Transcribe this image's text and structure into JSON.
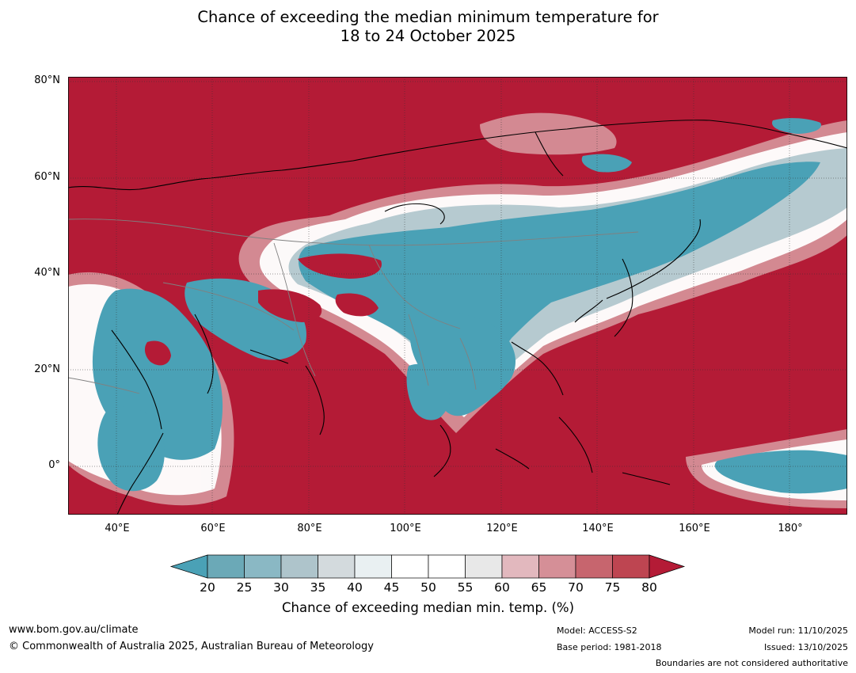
{
  "title": {
    "line1": "Chance of exceeding the median minimum temperature for",
    "line2": "18 to 24 October 2025"
  },
  "map": {
    "lat_ticks": [
      "80°N",
      "60°N",
      "40°N",
      "20°N",
      "0°"
    ],
    "lon_ticks": [
      "40°E",
      "60°E",
      "80°E",
      "100°E",
      "120°E",
      "140°E",
      "160°E",
      "180°"
    ],
    "lon_range": [
      30,
      192
    ],
    "lat_range": [
      -10,
      81
    ],
    "colors": {
      "high": "#b41b36",
      "low": "#4aa1b6",
      "neutral": "#ffffff",
      "coast": "#000000",
      "border": "#808080",
      "grid": "#333333"
    }
  },
  "colorbar": {
    "ticks": [
      "20",
      "25",
      "30",
      "35",
      "40",
      "45",
      "50",
      "55",
      "60",
      "65",
      "70",
      "75",
      "80"
    ],
    "colors": [
      "#4aa1b6",
      "#6ba9b7",
      "#8ab8c4",
      "#aec4cb",
      "#d3dadd",
      "#e9f0f2",
      "#ffffff",
      "#ffffff",
      "#e8e8e8",
      "#e2b8be",
      "#d58f97",
      "#c7656e",
      "#be4551",
      "#b41b36"
    ],
    "label": "Chance of exceeding median min. temp. (%)"
  },
  "footer": {
    "url": "www.bom.gov.au/climate",
    "copyright": "© Commonwealth of Australia 2025, Australian Bureau of Meteorology",
    "model": "Model: ACCESS-S2",
    "model_run": "Model run: 11/10/2025",
    "base_period": "Base period: 1981-2018",
    "issued": "Issued: 13/10/2025",
    "disclaimer": "Boundaries are not considered authoritative"
  }
}
